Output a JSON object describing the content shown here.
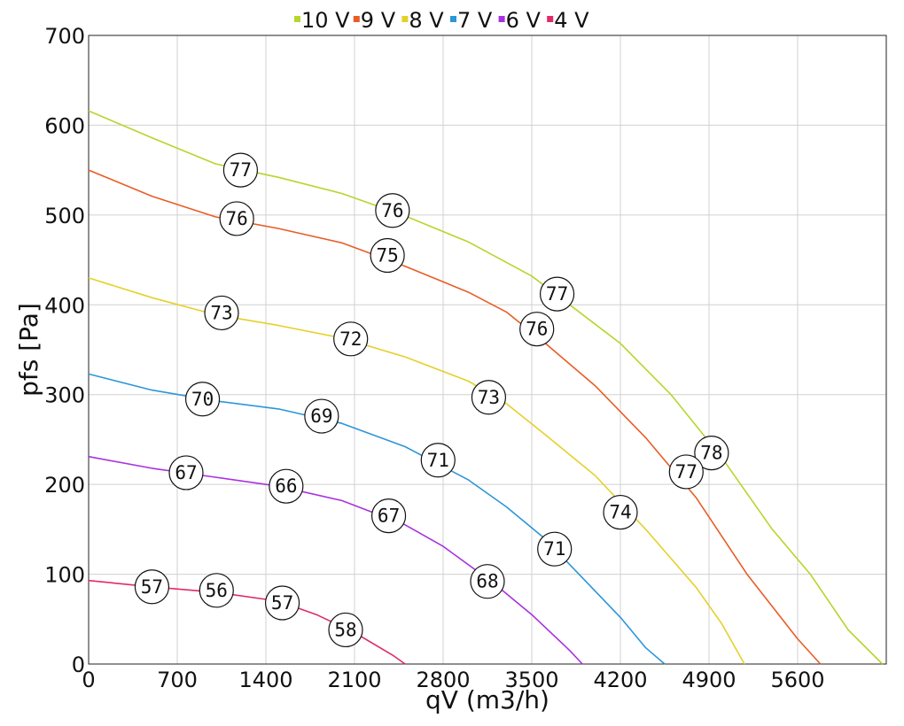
{
  "chart_data": {
    "type": "line",
    "xlabel": "qV (m3/h)",
    "ylabel": "pfs [Pa]",
    "xlim": [
      0,
      6300
    ],
    "ylim": [
      0,
      700
    ],
    "xticks": [
      0,
      700,
      1400,
      2100,
      2800,
      3500,
      4200,
      4900,
      5600
    ],
    "yticks": [
      0,
      100,
      200,
      300,
      400,
      500,
      600,
      700
    ],
    "grid": true,
    "legend_position": "top-center",
    "series": [
      {
        "name": "10 V",
        "color": "#b5d62b",
        "points": [
          [
            0,
            616
          ],
          [
            500,
            586
          ],
          [
            1000,
            557
          ],
          [
            1500,
            542
          ],
          [
            2000,
            524
          ],
          [
            2500,
            499
          ],
          [
            3000,
            470
          ],
          [
            3500,
            432
          ],
          [
            3800,
            400
          ],
          [
            4200,
            357
          ],
          [
            4600,
            300
          ],
          [
            5000,
            230
          ],
          [
            5400,
            150
          ],
          [
            5700,
            100
          ],
          [
            6000,
            38
          ],
          [
            6270,
            0
          ]
        ],
        "labels": [
          {
            "x": 1200,
            "y": 550,
            "text": "77"
          },
          {
            "x": 2400,
            "y": 505,
            "text": "76"
          },
          {
            "x": 3700,
            "y": 412,
            "text": "77"
          },
          {
            "x": 4920,
            "y": 235,
            "text": "78"
          }
        ]
      },
      {
        "name": "9 V",
        "color": "#e85d26",
        "points": [
          [
            0,
            550
          ],
          [
            500,
            521
          ],
          [
            1000,
            498
          ],
          [
            1500,
            485
          ],
          [
            2000,
            469
          ],
          [
            2500,
            443
          ],
          [
            3000,
            414
          ],
          [
            3300,
            392
          ],
          [
            3600,
            358
          ],
          [
            4000,
            310
          ],
          [
            4400,
            252
          ],
          [
            4800,
            185
          ],
          [
            5200,
            100
          ],
          [
            5600,
            28
          ],
          [
            5780,
            0
          ]
        ],
        "labels": [
          {
            "x": 1170,
            "y": 496,
            "text": "76"
          },
          {
            "x": 2360,
            "y": 455,
            "text": "75"
          },
          {
            "x": 3540,
            "y": 373,
            "text": "76"
          },
          {
            "x": 4720,
            "y": 214,
            "text": "77"
          }
        ]
      },
      {
        "name": "8 V",
        "color": "#e5d02a",
        "points": [
          [
            0,
            430
          ],
          [
            500,
            408
          ],
          [
            1000,
            389
          ],
          [
            1500,
            377
          ],
          [
            2000,
            363
          ],
          [
            2500,
            342
          ],
          [
            3000,
            315
          ],
          [
            3300,
            290
          ],
          [
            3600,
            256
          ],
          [
            4000,
            210
          ],
          [
            4400,
            150
          ],
          [
            4800,
            85
          ],
          [
            5000,
            45
          ],
          [
            5180,
            0
          ]
        ],
        "labels": [
          {
            "x": 1050,
            "y": 391,
            "text": "73"
          },
          {
            "x": 2070,
            "y": 362,
            "text": "72"
          },
          {
            "x": 3160,
            "y": 297,
            "text": "73"
          },
          {
            "x": 4200,
            "y": 169,
            "text": "74"
          }
        ]
      },
      {
        "name": "7 V",
        "color": "#2c96d8",
        "points": [
          [
            0,
            323
          ],
          [
            500,
            305
          ],
          [
            1000,
            293
          ],
          [
            1500,
            284
          ],
          [
            2000,
            268
          ],
          [
            2500,
            242
          ],
          [
            3000,
            205
          ],
          [
            3300,
            175
          ],
          [
            3600,
            140
          ],
          [
            3900,
            96
          ],
          [
            4200,
            52
          ],
          [
            4400,
            18
          ],
          [
            4550,
            0
          ]
        ],
        "labels": [
          {
            "x": 900,
            "y": 295,
            "text": "70"
          },
          {
            "x": 1840,
            "y": 276,
            "text": "69"
          },
          {
            "x": 2760,
            "y": 227,
            "text": "71"
          },
          {
            "x": 3680,
            "y": 128,
            "text": "71"
          }
        ]
      },
      {
        "name": "6 V",
        "color": "#a832e0",
        "points": [
          [
            0,
            231
          ],
          [
            500,
            218
          ],
          [
            1000,
            208
          ],
          [
            1500,
            198
          ],
          [
            2000,
            182
          ],
          [
            2500,
            155
          ],
          [
            2800,
            131
          ],
          [
            3200,
            90
          ],
          [
            3500,
            55
          ],
          [
            3800,
            15
          ],
          [
            3900,
            0
          ]
        ],
        "labels": [
          {
            "x": 770,
            "y": 213,
            "text": "67"
          },
          {
            "x": 1560,
            "y": 198,
            "text": "66"
          },
          {
            "x": 2370,
            "y": 165,
            "text": "67"
          },
          {
            "x": 3150,
            "y": 92,
            "text": "68"
          }
        ]
      },
      {
        "name": "4 V",
        "color": "#e02a6b",
        "points": [
          [
            0,
            93
          ],
          [
            500,
            86
          ],
          [
            1000,
            80
          ],
          [
            1500,
            70
          ],
          [
            1800,
            55
          ],
          [
            2100,
            35
          ],
          [
            2400,
            10
          ],
          [
            2500,
            0
          ]
        ],
        "labels": [
          {
            "x": 500,
            "y": 86,
            "text": "57"
          },
          {
            "x": 1010,
            "y": 82,
            "text": "56"
          },
          {
            "x": 1530,
            "y": 68,
            "text": "57"
          },
          {
            "x": 2030,
            "y": 38,
            "text": "58"
          }
        ]
      }
    ]
  }
}
